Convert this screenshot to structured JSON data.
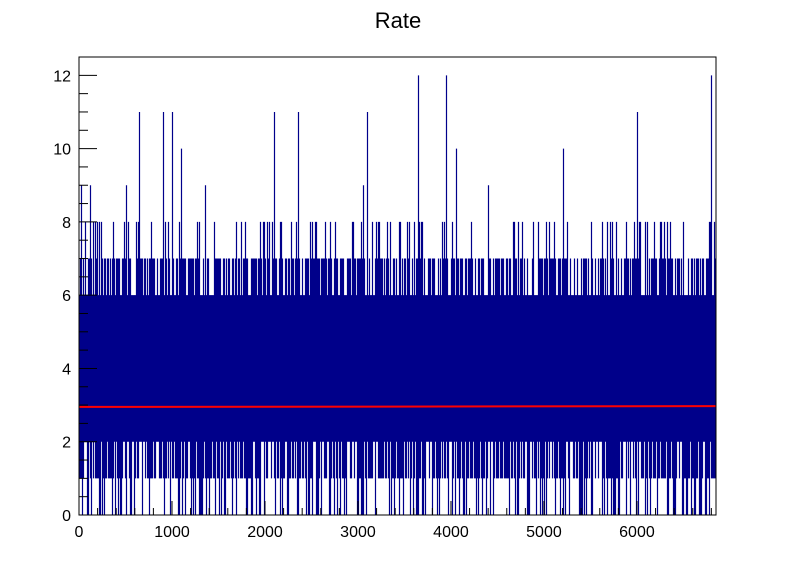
{
  "chart_data": {
    "type": "bar",
    "title": "Rate",
    "xlabel": "",
    "ylabel": "",
    "xlim": [
      0,
      6850
    ],
    "ylim": [
      0,
      12.5
    ],
    "x_ticks": [
      0,
      1000,
      2000,
      3000,
      4000,
      5000,
      6000
    ],
    "y_ticks": [
      0,
      2,
      4,
      6,
      8,
      10,
      12
    ],
    "grid": false,
    "legend": "none",
    "colors": {
      "histogram": "#00008B",
      "fit_line": "#FF0000"
    },
    "series": [
      {
        "type": "histogram",
        "bin_width": 1,
        "x_range": [
          0,
          6850
        ],
        "summary": {
          "typical_range": [
            1,
            7
          ],
          "max": 12
        },
        "peaks": [
          {
            "x": 20,
            "y": 9
          },
          {
            "x": 120,
            "y": 9
          },
          {
            "x": 650,
            "y": 11
          },
          {
            "x": 900,
            "y": 11
          },
          {
            "x": 1000,
            "y": 11
          },
          {
            "x": 1100,
            "y": 10
          },
          {
            "x": 2100,
            "y": 11
          },
          {
            "x": 2350,
            "y": 11
          },
          {
            "x": 3100,
            "y": 11
          },
          {
            "x": 3650,
            "y": 12
          },
          {
            "x": 3950,
            "y": 12
          },
          {
            "x": 4050,
            "y": 10
          },
          {
            "x": 5200,
            "y": 10
          },
          {
            "x": 6000,
            "y": 11
          },
          {
            "x": 6800,
            "y": 12
          }
        ]
      },
      {
        "type": "line",
        "x": [
          0,
          6850
        ],
        "y": [
          2.95,
          2.97
        ]
      }
    ]
  }
}
